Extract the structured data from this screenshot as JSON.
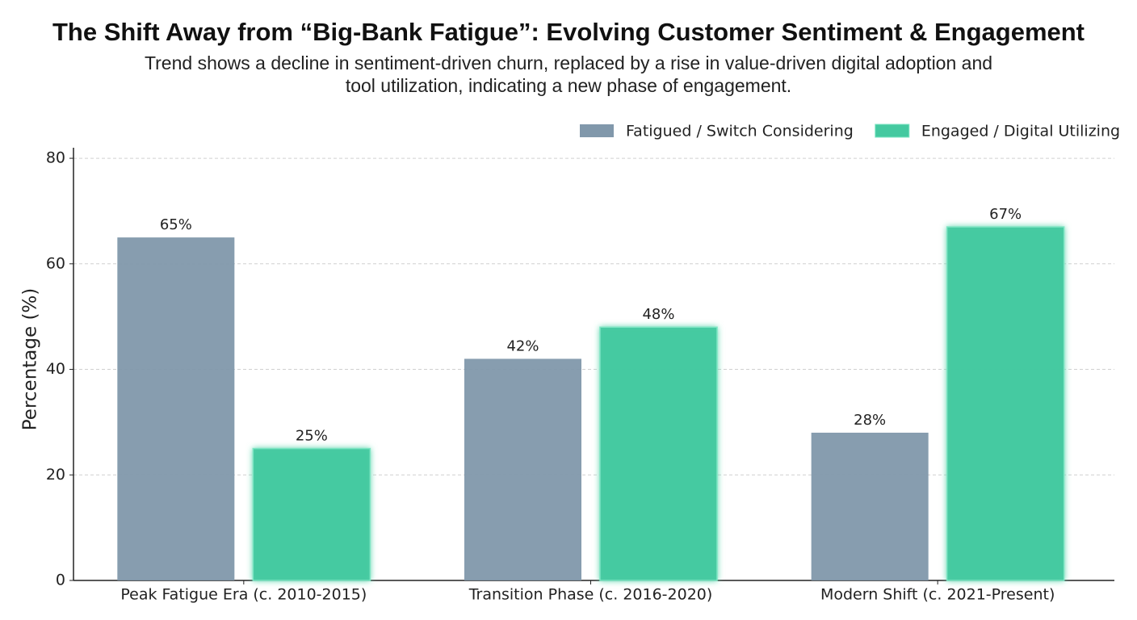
{
  "chart_data": {
    "type": "bar",
    "title": "The Shift Away from “Big-Bank Fatigue”: Evolving Customer Sentiment & Engagement",
    "subtitle": "Trend shows a decline in sentiment-driven churn, replaced by a rise in value-driven digital adoption and tool utilization, indicating a new phase of engagement.",
    "y_label": "Percentage (%)",
    "categories": [
      "Peak Fatigue Era (c. 2010-2015)",
      "Transition Phase (c. 2016-2020)",
      "Modern Shift (c. 2021-Present)"
    ],
    "series": [
      {
        "name": "Fatigued / Switch Considering",
        "color": "#8198ab",
        "values": [
          65,
          42,
          28
        ],
        "value_labels": [
          "65%",
          "42%",
          "28%"
        ]
      },
      {
        "name": "Engaged / Digital Utilizing",
        "color": "#44c9a0",
        "values": [
          25,
          48,
          67
        ],
        "value_labels": [
          "25%",
          "48%",
          "67%"
        ]
      }
    ],
    "ylim": [
      0,
      82
    ],
    "yticks": [
      0,
      20,
      40,
      60,
      80
    ],
    "grid": true,
    "legend": "top-right"
  }
}
